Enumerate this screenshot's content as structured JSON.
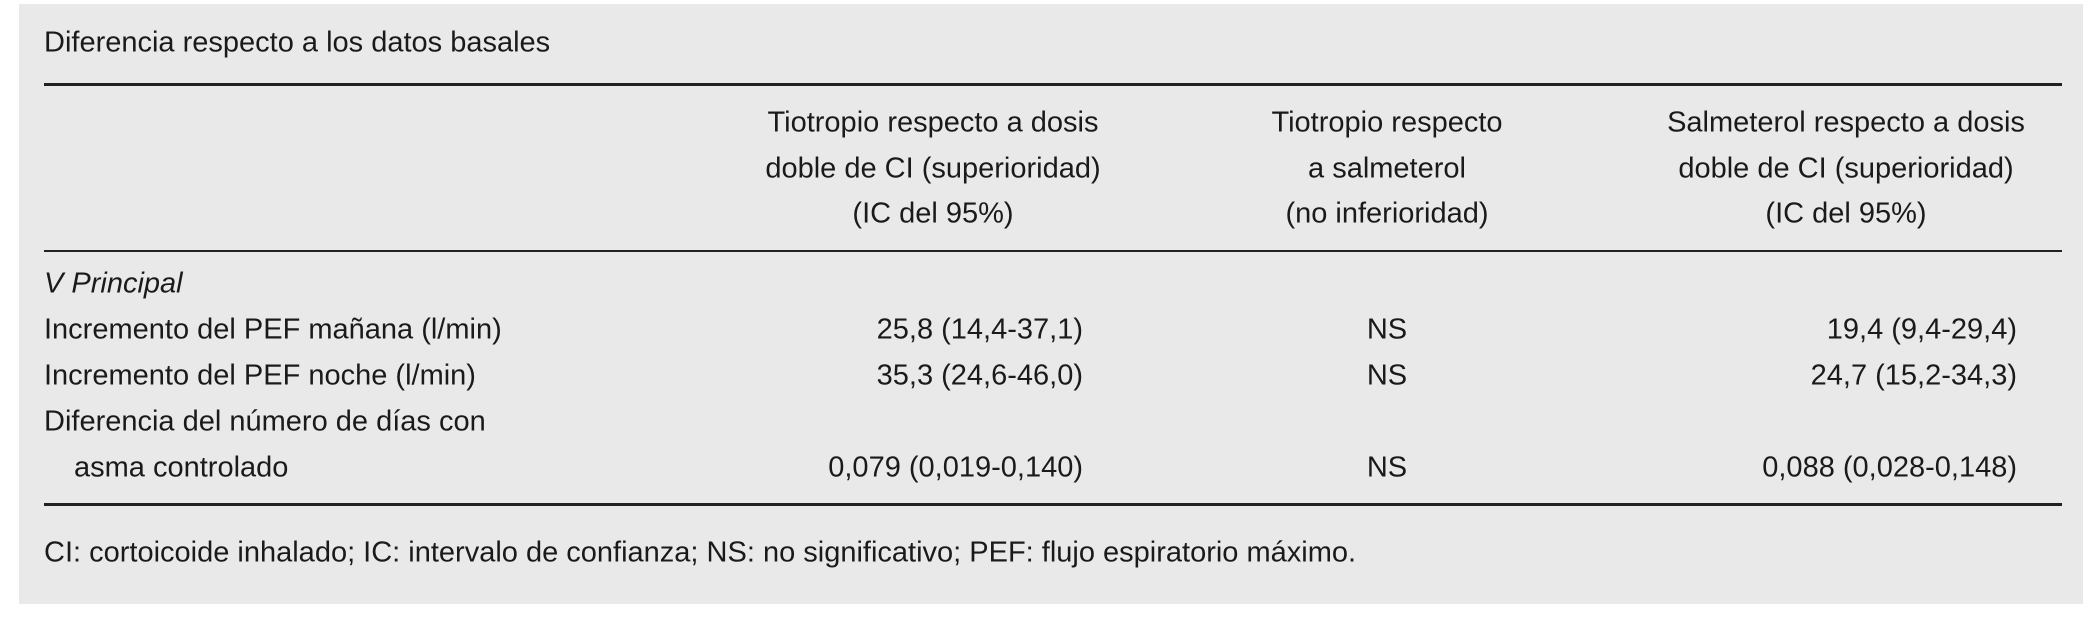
{
  "header": {
    "title": "Diferencia respecto a los datos basales"
  },
  "table": {
    "columns": [
      [
        "Tiotropio respecto a dosis",
        "doble de CI (superioridad)",
        "(IC del 95%)"
      ],
      [
        "Tiotropio respecto",
        "a salmeterol",
        "(no inferioridad)"
      ],
      [
        "Salmeterol respecto a dosis",
        "doble de CI (superioridad)",
        "(IC del 95%)"
      ]
    ],
    "section": "V Principal",
    "rows": [
      {
        "label": [
          "Incremento del PEF mañana (l/min)"
        ],
        "cells": [
          "25,8 (14,4-37,1)",
          "NS",
          "19,4 (9,4-29,4)"
        ]
      },
      {
        "label": [
          "Incremento del PEF noche (l/min)"
        ],
        "cells": [
          "35,3 (24,6-46,0)",
          "NS",
          "24,7 (15,2-34,3)"
        ]
      },
      {
        "label": [
          "Diferencia del número de días con",
          "asma controlado"
        ],
        "cells": [
          "0,079 (0,019-0,140)",
          "NS",
          "0,088 (0,028-0,148)"
        ]
      }
    ]
  },
  "footnote": "CI: cortoicoide inhalado; IC: intervalo de confianza; NS: no significativo; PEF: flujo espiratorio máximo."
}
